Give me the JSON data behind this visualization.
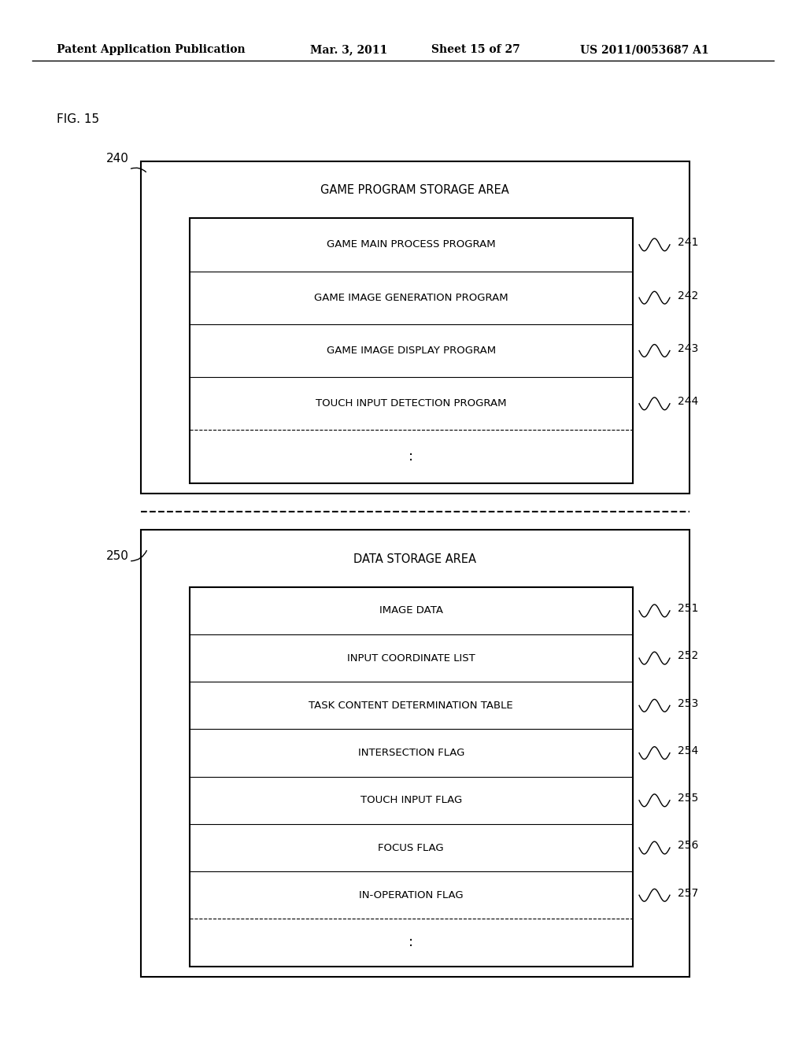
{
  "background_color": "#ffffff",
  "header_text": "Patent Application Publication",
  "header_date": "Mar. 3, 2011",
  "header_sheet": "Sheet 15 of 27",
  "header_patent": "US 2011/0053687 A1",
  "fig_label": "FIG. 15",
  "top_box_label": "240",
  "top_box_title": "GAME PROGRAM STORAGE AREA",
  "top_inner_rows": [
    {
      "label": "GAME MAIN PROCESS PROGRAM",
      "ref": "241"
    },
    {
      "label": "GAME IMAGE GENERATION PROGRAM",
      "ref": "242"
    },
    {
      "label": "GAME IMAGE DISPLAY PROGRAM",
      "ref": "243"
    },
    {
      "label": "TOUCH INPUT DETECTION PROGRAM",
      "ref": "244"
    },
    {
      "label": ":",
      "ref": ""
    }
  ],
  "bottom_box_label": "250",
  "bottom_box_title": "DATA STORAGE AREA",
  "bottom_inner_rows": [
    {
      "label": "IMAGE DATA",
      "ref": "251"
    },
    {
      "label": "INPUT COORDINATE LIST",
      "ref": "252"
    },
    {
      "label": "TASK CONTENT DETERMINATION TABLE",
      "ref": "253"
    },
    {
      "label": "INTERSECTION FLAG",
      "ref": "254"
    },
    {
      "label": "TOUCH INPUT FLAG",
      "ref": "255"
    },
    {
      "label": "FOCUS FLAG",
      "ref": "256"
    },
    {
      "label": "IN-OPERATION FLAG",
      "ref": "257"
    },
    {
      "label": ":",
      "ref": ""
    }
  ]
}
